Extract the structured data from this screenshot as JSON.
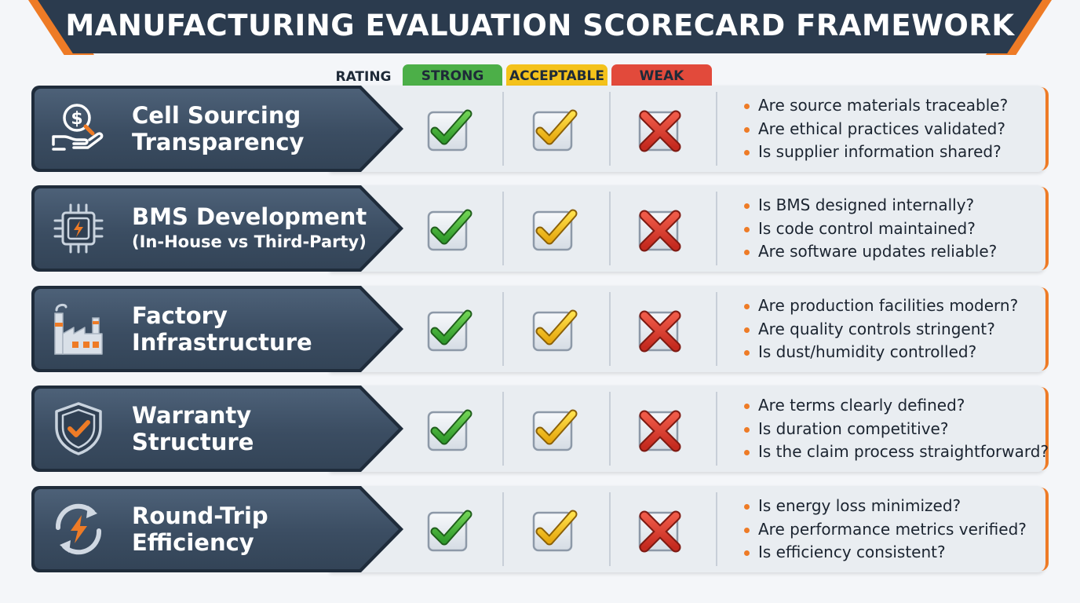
{
  "title": "MANUFACTURING EVALUATION SCORECARD FRAMEWORK",
  "rating": {
    "label": "RATING",
    "strong": "STRONG",
    "acceptable": "ACCEPTABLE",
    "weak": "WEAK"
  },
  "colors": {
    "navy": "#2b3b4e",
    "orange": "#ee7b26",
    "strong": "#4caf48",
    "acceptable": "#f4c21b",
    "weak": "#e24a3b"
  },
  "rows": [
    {
      "icon": "dollar-hand-icon",
      "line1": "Cell Sourcing",
      "line2": "Transparency",
      "sub": "",
      "questions": [
        "Are source materials traceable?",
        "Are ethical practices validated?",
        "Is supplier information shared?"
      ]
    },
    {
      "icon": "circuit-chip-icon",
      "line1": "BMS Development",
      "line2": "",
      "sub": "(In-House vs Third-Party)",
      "questions": [
        "Is BMS designed internally?",
        "Is code control maintained?",
        "Are software updates reliable?"
      ]
    },
    {
      "icon": "factory-icon",
      "line1": "Factory",
      "line2": "Infrastructure",
      "sub": "",
      "questions": [
        "Are production facilities modern?",
        "Are quality controls stringent?",
        "Is dust/humidity controlled?"
      ]
    },
    {
      "icon": "shield-check-icon",
      "line1": "Warranty",
      "line2": "Structure",
      "sub": "",
      "questions": [
        "Are terms clearly defined?",
        "Is duration competitive?",
        "Is the claim process straightforward?"
      ]
    },
    {
      "icon": "refresh-energy-icon",
      "line1": "Round-Trip",
      "line2": "Efficiency",
      "sub": "",
      "questions": [
        "Is energy loss minimized?",
        "Are performance metrics verified?",
        "Is efficiency consistent?"
      ]
    }
  ]
}
